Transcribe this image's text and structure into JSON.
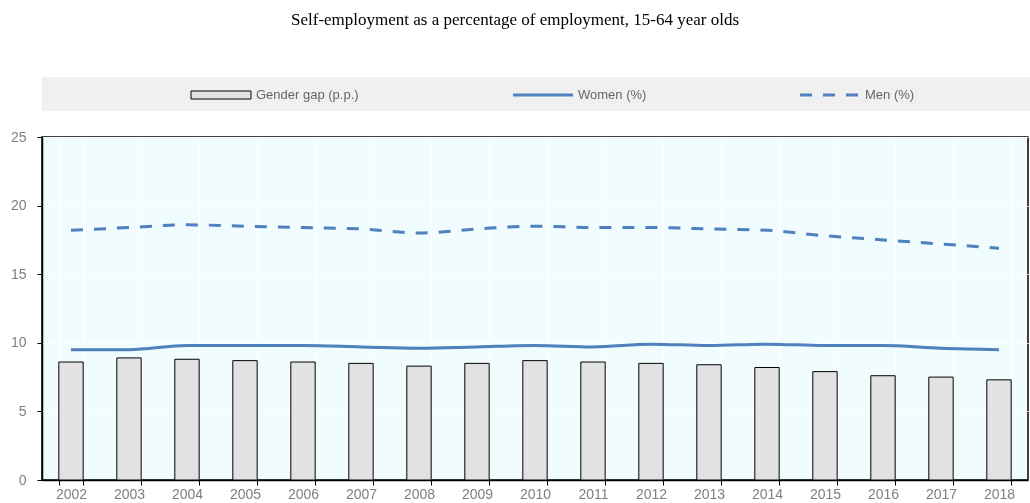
{
  "chart_data": {
    "type": "bar",
    "title": "Self-employment as a percentage of employment, 15-64 year olds",
    "categories": [
      "2002",
      "2003",
      "2004",
      "2005",
      "2006",
      "2007",
      "2008",
      "2009",
      "2010",
      "2011",
      "2012",
      "2013",
      "2014",
      "2015",
      "2016",
      "2017",
      "2018"
    ],
    "series": [
      {
        "name": "Gender gap (p.p.)",
        "color": "#e2e2e2",
        "values": [
          8.6,
          8.9,
          8.8,
          8.7,
          8.6,
          8.5,
          8.3,
          8.5,
          8.7,
          8.6,
          8.5,
          8.4,
          8.2,
          7.9,
          7.6,
          7.5,
          7.3
        ]
      },
      {
        "name": "Women (%)",
        "type": "line",
        "line_style": "solid",
        "color": "#4e81bd",
        "values": [
          9.5,
          9.5,
          9.8,
          9.8,
          9.8,
          9.7,
          9.6,
          9.7,
          9.8,
          9.7,
          9.9,
          9.8,
          9.9,
          9.8,
          9.8,
          9.6,
          9.5
        ]
      },
      {
        "name": "Men (%)",
        "type": "line",
        "line_style": "dashed",
        "color": "#4e81bd",
        "values": [
          18.2,
          18.4,
          18.6,
          18.5,
          18.4,
          18.3,
          18.0,
          18.3,
          18.5,
          18.4,
          18.4,
          18.3,
          18.2,
          17.8,
          17.5,
          17.2,
          16.9
        ]
      }
    ],
    "ylim": [
      0,
      25
    ],
    "yticks": [
      0,
      5,
      10,
      15,
      20,
      25
    ],
    "grid": true,
    "legend": "top"
  }
}
